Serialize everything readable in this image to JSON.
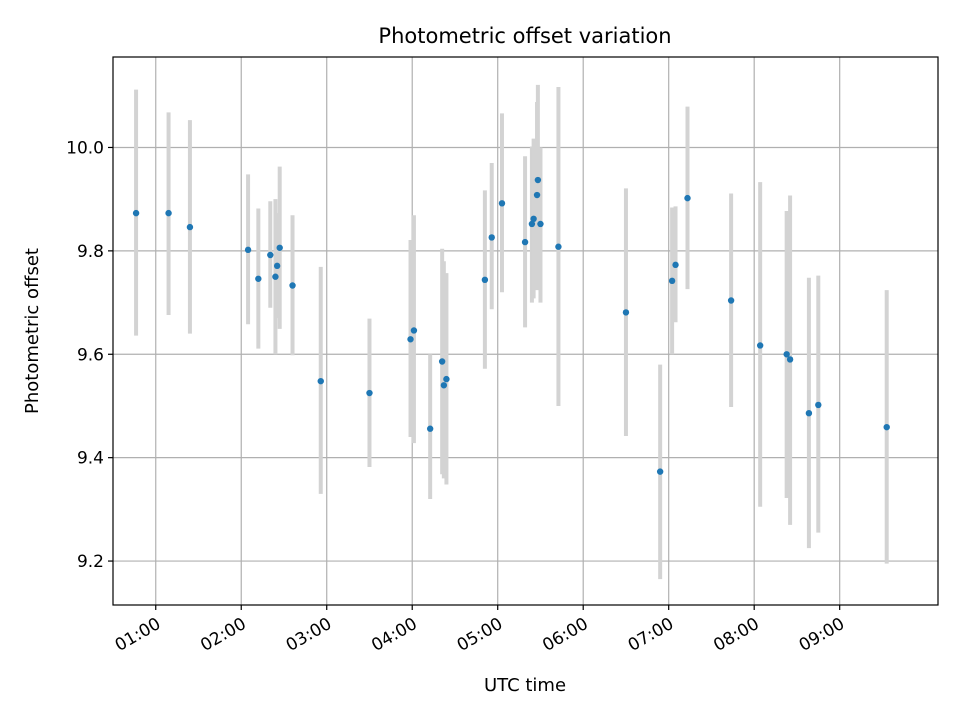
{
  "chart_data": {
    "type": "scatter",
    "title": "Photometric offset variation",
    "xlabel": "UTC time",
    "ylabel": "Photometric offset",
    "xlim": [
      0.5,
      10.15
    ],
    "ylim": [
      9.115,
      10.175
    ],
    "x_ticks": [
      {
        "value": 1,
        "label": "01:00"
      },
      {
        "value": 2,
        "label": "02:00"
      },
      {
        "value": 3,
        "label": "03:00"
      },
      {
        "value": 4,
        "label": "04:00"
      },
      {
        "value": 5,
        "label": "05:00"
      },
      {
        "value": 6,
        "label": "06:00"
      },
      {
        "value": 7,
        "label": "07:00"
      },
      {
        "value": 8,
        "label": "08:00"
      },
      {
        "value": 9,
        "label": "09:00"
      }
    ],
    "y_ticks": [
      {
        "value": 9.2,
        "label": "9.2"
      },
      {
        "value": 9.4,
        "label": "9.4"
      },
      {
        "value": 9.6,
        "label": "9.6"
      },
      {
        "value": 9.8,
        "label": "9.8"
      },
      {
        "value": 10.0,
        "label": "10.0"
      }
    ],
    "grid": true,
    "colors": {
      "point": "#1f77b4",
      "errorbar": "#d3d3d3",
      "grid": "#b0b0b0"
    },
    "points": [
      {
        "x": 0.77,
        "y": 9.873,
        "low": 9.636,
        "high": 10.112
      },
      {
        "x": 1.15,
        "y": 9.873,
        "low": 9.676,
        "high": 10.068
      },
      {
        "x": 1.4,
        "y": 9.846,
        "low": 9.64,
        "high": 10.053
      },
      {
        "x": 2.08,
        "y": 9.802,
        "low": 9.658,
        "high": 9.948
      },
      {
        "x": 2.2,
        "y": 9.746,
        "low": 9.611,
        "high": 9.882
      },
      {
        "x": 2.34,
        "y": 9.792,
        "low": 9.69,
        "high": 9.896
      },
      {
        "x": 2.4,
        "y": 9.75,
        "low": 9.6,
        "high": 9.9
      },
      {
        "x": 2.42,
        "y": 9.771,
        "low": 9.67,
        "high": 9.873
      },
      {
        "x": 2.45,
        "y": 9.806,
        "low": 9.649,
        "high": 9.963
      },
      {
        "x": 2.6,
        "y": 9.733,
        "low": 9.598,
        "high": 9.869
      },
      {
        "x": 2.93,
        "y": 9.548,
        "low": 9.33,
        "high": 9.769
      },
      {
        "x": 3.5,
        "y": 9.525,
        "low": 9.382,
        "high": 9.669
      },
      {
        "x": 3.98,
        "y": 9.629,
        "low": 9.44,
        "high": 9.821
      },
      {
        "x": 4.02,
        "y": 9.646,
        "low": 9.428,
        "high": 9.869
      },
      {
        "x": 4.21,
        "y": 9.456,
        "low": 9.32,
        "high": 9.6
      },
      {
        "x": 4.35,
        "y": 9.586,
        "low": 9.368,
        "high": 9.804
      },
      {
        "x": 4.37,
        "y": 9.54,
        "low": 9.36,
        "high": 9.78
      },
      {
        "x": 4.4,
        "y": 9.552,
        "low": 9.348,
        "high": 9.757
      },
      {
        "x": 4.85,
        "y": 9.744,
        "low": 9.572,
        "high": 9.917
      },
      {
        "x": 4.93,
        "y": 9.826,
        "low": 9.687,
        "high": 9.97
      },
      {
        "x": 5.05,
        "y": 9.892,
        "low": 9.72,
        "high": 10.066
      },
      {
        "x": 5.32,
        "y": 9.817,
        "low": 9.652,
        "high": 9.983
      },
      {
        "x": 5.4,
        "y": 9.852,
        "low": 9.7,
        "high": 10.002
      },
      {
        "x": 5.42,
        "y": 9.862,
        "low": 9.708,
        "high": 10.017
      },
      {
        "x": 5.46,
        "y": 9.908,
        "low": 9.724,
        "high": 10.088
      },
      {
        "x": 5.47,
        "y": 9.937,
        "low": 9.754,
        "high": 10.121
      },
      {
        "x": 5.5,
        "y": 9.852,
        "low": 9.7,
        "high": 10.0
      },
      {
        "x": 5.71,
        "y": 9.808,
        "low": 9.5,
        "high": 10.117
      },
      {
        "x": 6.5,
        "y": 9.681,
        "low": 9.442,
        "high": 9.921
      },
      {
        "x": 6.9,
        "y": 9.373,
        "low": 9.165,
        "high": 9.58
      },
      {
        "x": 7.04,
        "y": 9.742,
        "low": 9.6,
        "high": 9.884
      },
      {
        "x": 7.08,
        "y": 9.773,
        "low": 9.662,
        "high": 9.886
      },
      {
        "x": 7.22,
        "y": 9.902,
        "low": 9.726,
        "high": 10.079
      },
      {
        "x": 7.73,
        "y": 9.704,
        "low": 9.498,
        "high": 9.911
      },
      {
        "x": 8.07,
        "y": 9.617,
        "low": 9.305,
        "high": 9.933
      },
      {
        "x": 8.38,
        "y": 9.6,
        "low": 9.322,
        "high": 9.877
      },
      {
        "x": 8.42,
        "y": 9.59,
        "low": 9.27,
        "high": 9.907
      },
      {
        "x": 8.64,
        "y": 9.486,
        "low": 9.225,
        "high": 9.748
      },
      {
        "x": 8.75,
        "y": 9.502,
        "low": 9.255,
        "high": 9.752
      },
      {
        "x": 9.55,
        "y": 9.459,
        "low": 9.195,
        "high": 9.724
      }
    ]
  }
}
